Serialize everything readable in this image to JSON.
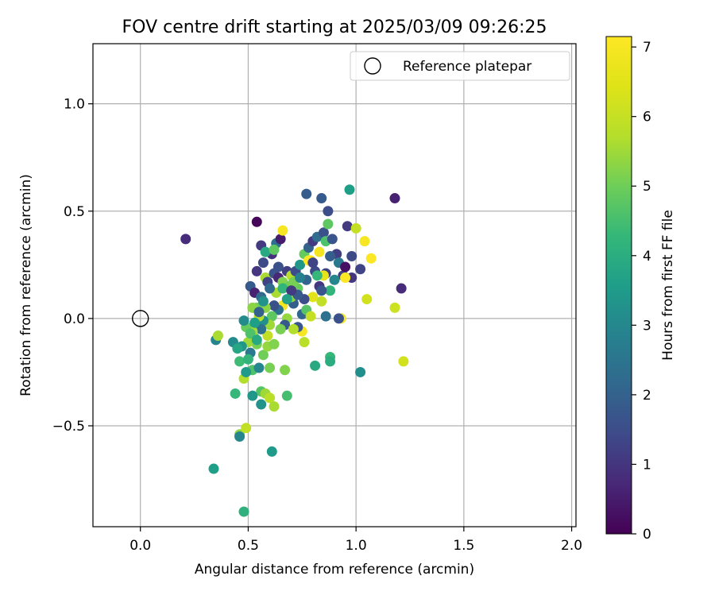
{
  "chart_data": {
    "type": "scatter",
    "title": "FOV centre drift starting at 2025/03/09 09:26:25",
    "xlabel": "Angular distance from reference (arcmin)",
    "ylabel": "Rotation from reference (arcmin)",
    "xlim": [
      -0.22,
      2.02
    ],
    "ylim": [
      -0.97,
      1.28
    ],
    "xticks": [
      0.0,
      0.5,
      1.0,
      1.5,
      2.0
    ],
    "xtick_labels": [
      "0.0",
      "0.5",
      "1.0",
      "1.5",
      "2.0"
    ],
    "yticks": [
      -0.5,
      0.0,
      0.5,
      1.0
    ],
    "ytick_labels": [
      "−0.5",
      "0.0",
      "0.5",
      "1.0"
    ],
    "grid": true,
    "legend": {
      "location": "top-right",
      "entries": [
        "Reference platepar"
      ]
    },
    "reference_point": {
      "x": 0.0,
      "y": 0.0,
      "label": "Reference platepar"
    },
    "colorbar": {
      "label": "Hours from first FF file",
      "range": [
        0,
        7.15
      ],
      "ticks": [
        0,
        1,
        2,
        3,
        4,
        5,
        6,
        7
      ],
      "tick_labels": [
        "0",
        "1",
        "2",
        "3",
        "4",
        "5",
        "6",
        "7"
      ],
      "colormap": "viridis"
    },
    "points": [
      {
        "x": 0.21,
        "y": 0.37,
        "c": 0.8
      },
      {
        "x": 0.54,
        "y": 0.45,
        "c": 0.1
      },
      {
        "x": 0.56,
        "y": 0.34,
        "c": 1.1
      },
      {
        "x": 0.61,
        "y": 0.3,
        "c": 0.9
      },
      {
        "x": 0.63,
        "y": 0.35,
        "c": 2.3
      },
      {
        "x": 0.65,
        "y": 0.37,
        "c": 0.5
      },
      {
        "x": 0.66,
        "y": 0.41,
        "c": 7.0
      },
      {
        "x": 0.57,
        "y": 0.26,
        "c": 1.4
      },
      {
        "x": 0.54,
        "y": 0.22,
        "c": 1.0
      },
      {
        "x": 0.51,
        "y": 0.15,
        "c": 1.8
      },
      {
        "x": 0.53,
        "y": 0.12,
        "c": 0.6
      },
      {
        "x": 0.56,
        "y": 0.1,
        "c": 2.2
      },
      {
        "x": 0.58,
        "y": 0.19,
        "c": 5.6
      },
      {
        "x": 0.59,
        "y": 0.17,
        "c": 1.3
      },
      {
        "x": 0.62,
        "y": 0.21,
        "c": 1.7
      },
      {
        "x": 0.64,
        "y": 0.19,
        "c": 0.7
      },
      {
        "x": 0.66,
        "y": 0.17,
        "c": 5.2
      },
      {
        "x": 0.68,
        "y": 0.22,
        "c": 1.2
      },
      {
        "x": 0.7,
        "y": 0.2,
        "c": 5.8
      },
      {
        "x": 0.72,
        "y": 0.22,
        "c": 1.5
      },
      {
        "x": 0.74,
        "y": 0.25,
        "c": 3.4
      },
      {
        "x": 0.76,
        "y": 0.3,
        "c": 4.9
      },
      {
        "x": 0.77,
        "y": 0.58,
        "c": 1.9
      },
      {
        "x": 0.78,
        "y": 0.33,
        "c": 2.0
      },
      {
        "x": 0.8,
        "y": 0.36,
        "c": 1.1
      },
      {
        "x": 0.82,
        "y": 0.38,
        "c": 2.3
      },
      {
        "x": 0.83,
        "y": 0.31,
        "c": 6.9
      },
      {
        "x": 0.84,
        "y": 0.56,
        "c": 1.8
      },
      {
        "x": 0.85,
        "y": 0.4,
        "c": 1.6
      },
      {
        "x": 0.86,
        "y": 0.36,
        "c": 4.6
      },
      {
        "x": 0.87,
        "y": 0.5,
        "c": 1.5
      },
      {
        "x": 0.87,
        "y": 0.44,
        "c": 4.8
      },
      {
        "x": 0.89,
        "y": 0.37,
        "c": 1.7
      },
      {
        "x": 0.91,
        "y": 0.3,
        "c": 1.2
      },
      {
        "x": 0.92,
        "y": 0.26,
        "c": 2.6
      },
      {
        "x": 0.94,
        "y": 0.2,
        "c": 1.3
      },
      {
        "x": 0.95,
        "y": 0.24,
        "c": 0.3
      },
      {
        "x": 0.96,
        "y": 0.43,
        "c": 1.1
      },
      {
        "x": 0.97,
        "y": 0.6,
        "c": 3.6
      },
      {
        "x": 0.98,
        "y": 0.29,
        "c": 1.4
      },
      {
        "x": 0.98,
        "y": 0.19,
        "c": 1.0
      },
      {
        "x": 1.0,
        "y": 0.42,
        "c": 6.0
      },
      {
        "x": 1.02,
        "y": 0.23,
        "c": 1.3
      },
      {
        "x": 1.04,
        "y": 0.36,
        "c": 7.0
      },
      {
        "x": 1.07,
        "y": 0.28,
        "c": 7.1
      },
      {
        "x": 1.05,
        "y": 0.09,
        "c": 6.2
      },
      {
        "x": 1.18,
        "y": 0.56,
        "c": 0.6
      },
      {
        "x": 1.21,
        "y": 0.14,
        "c": 0.8
      },
      {
        "x": 1.18,
        "y": 0.05,
        "c": 6.1
      },
      {
        "x": 1.22,
        "y": -0.2,
        "c": 6.2
      },
      {
        "x": 1.02,
        "y": -0.25,
        "c": 3.2
      },
      {
        "x": 0.95,
        "y": 0.19,
        "c": 7.1
      },
      {
        "x": 0.93,
        "y": 0.0,
        "c": 6.9
      },
      {
        "x": 0.92,
        "y": 0.0,
        "c": 1.6
      },
      {
        "x": 0.88,
        "y": 0.13,
        "c": 4.2
      },
      {
        "x": 0.88,
        "y": -0.18,
        "c": 4.3
      },
      {
        "x": 0.88,
        "y": -0.2,
        "c": 4.0
      },
      {
        "x": 0.86,
        "y": 0.21,
        "c": 1.2
      },
      {
        "x": 0.85,
        "y": 0.2,
        "c": 6.6
      },
      {
        "x": 0.84,
        "y": 0.08,
        "c": 5.9
      },
      {
        "x": 0.83,
        "y": 0.15,
        "c": 1.0
      },
      {
        "x": 0.81,
        "y": 0.22,
        "c": 1.4
      },
      {
        "x": 0.8,
        "y": 0.1,
        "c": 6.5
      },
      {
        "x": 0.79,
        "y": 0.27,
        "c": 6.8
      },
      {
        "x": 0.78,
        "y": 0.27,
        "c": 7.1
      },
      {
        "x": 0.77,
        "y": 0.18,
        "c": 2.1
      },
      {
        "x": 0.76,
        "y": 0.09,
        "c": 1.5
      },
      {
        "x": 0.75,
        "y": -0.06,
        "c": 7.0
      },
      {
        "x": 0.76,
        "y": -0.11,
        "c": 5.8
      },
      {
        "x": 0.73,
        "y": -0.04,
        "c": 1.7
      },
      {
        "x": 0.71,
        "y": 0.07,
        "c": 1.9
      },
      {
        "x": 0.7,
        "y": 0.1,
        "c": 5.3
      },
      {
        "x": 0.68,
        "y": 0.0,
        "c": 5.4
      },
      {
        "x": 0.67,
        "y": -0.03,
        "c": 1.8
      },
      {
        "x": 0.66,
        "y": 0.06,
        "c": 7.0
      },
      {
        "x": 0.65,
        "y": -0.05,
        "c": 5.1
      },
      {
        "x": 0.64,
        "y": 0.04,
        "c": 2.4
      },
      {
        "x": 0.63,
        "y": 0.12,
        "c": 5.6
      },
      {
        "x": 0.62,
        "y": 0.06,
        "c": 1.6
      },
      {
        "x": 0.61,
        "y": 0.01,
        "c": 4.8
      },
      {
        "x": 0.6,
        "y": -0.03,
        "c": 5.5
      },
      {
        "x": 0.59,
        "y": -0.08,
        "c": 5.9
      },
      {
        "x": 0.58,
        "y": 0.05,
        "c": 5.3
      },
      {
        "x": 0.57,
        "y": -0.01,
        "c": 3.2
      },
      {
        "x": 0.56,
        "y": -0.05,
        "c": 2.4
      },
      {
        "x": 0.55,
        "y": 0.01,
        "c": 5.8
      },
      {
        "x": 0.54,
        "y": -0.12,
        "c": 5.1
      },
      {
        "x": 0.53,
        "y": -0.09,
        "c": 4.6
      },
      {
        "x": 0.52,
        "y": -0.06,
        "c": 5.6
      },
      {
        "x": 0.51,
        "y": -0.16,
        "c": 2.6
      },
      {
        "x": 0.5,
        "y": -0.11,
        "c": 5.5
      },
      {
        "x": 0.49,
        "y": -0.04,
        "c": 4.9
      },
      {
        "x": 0.48,
        "y": -0.01,
        "c": 3.1
      },
      {
        "x": 0.47,
        "y": -0.13,
        "c": 3.4
      },
      {
        "x": 0.46,
        "y": -0.2,
        "c": 4.4
      },
      {
        "x": 0.48,
        "y": -0.28,
        "c": 5.7
      },
      {
        "x": 0.52,
        "y": -0.24,
        "c": 4.6
      },
      {
        "x": 0.55,
        "y": -0.23,
        "c": 3.0
      },
      {
        "x": 0.56,
        "y": -0.34,
        "c": 4.7
      },
      {
        "x": 0.58,
        "y": -0.35,
        "c": 5.5
      },
      {
        "x": 0.6,
        "y": -0.37,
        "c": 5.8
      },
      {
        "x": 0.62,
        "y": -0.41,
        "c": 5.6
      },
      {
        "x": 0.56,
        "y": -0.4,
        "c": 3.3
      },
      {
        "x": 0.52,
        "y": -0.36,
        "c": 3.4
      },
      {
        "x": 0.44,
        "y": -0.35,
        "c": 4.3
      },
      {
        "x": 0.46,
        "y": -0.54,
        "c": 5.4
      },
      {
        "x": 0.46,
        "y": -0.55,
        "c": 3.0
      },
      {
        "x": 0.49,
        "y": -0.51,
        "c": 5.9
      },
      {
        "x": 0.34,
        "y": -0.7,
        "c": 3.6
      },
      {
        "x": 0.48,
        "y": -0.9,
        "c": 4.1
      },
      {
        "x": 0.61,
        "y": -0.62,
        "c": 3.5
      },
      {
        "x": 0.6,
        "y": -0.23,
        "c": 5.1
      },
      {
        "x": 0.67,
        "y": -0.24,
        "c": 5.2
      },
      {
        "x": 0.68,
        "y": -0.36,
        "c": 4.5
      },
      {
        "x": 0.71,
        "y": -0.05,
        "c": 5.7
      },
      {
        "x": 0.73,
        "y": 0.14,
        "c": 4.9
      },
      {
        "x": 0.69,
        "y": 0.15,
        "c": 5.0
      },
      {
        "x": 0.35,
        "y": -0.1,
        "c": 2.9
      },
      {
        "x": 0.36,
        "y": -0.08,
        "c": 5.6
      },
      {
        "x": 0.43,
        "y": -0.11,
        "c": 3.1
      },
      {
        "x": 0.45,
        "y": -0.14,
        "c": 3.8
      },
      {
        "x": 0.5,
        "y": -0.19,
        "c": 4.2
      },
      {
        "x": 0.49,
        "y": -0.25,
        "c": 3.5
      },
      {
        "x": 0.51,
        "y": -0.07,
        "c": 4.6
      },
      {
        "x": 0.54,
        "y": -0.1,
        "c": 3.9
      },
      {
        "x": 0.57,
        "y": -0.17,
        "c": 5.0
      },
      {
        "x": 0.59,
        "y": -0.13,
        "c": 5.4
      },
      {
        "x": 0.62,
        "y": -0.12,
        "c": 5.2
      },
      {
        "x": 0.54,
        "y": 0.05,
        "c": 5.0
      },
      {
        "x": 0.52,
        "y": 0.05,
        "c": 5.3
      },
      {
        "x": 0.58,
        "y": 0.31,
        "c": 3.9
      },
      {
        "x": 0.62,
        "y": 0.32,
        "c": 4.8
      },
      {
        "x": 0.66,
        "y": 0.14,
        "c": 4.2
      },
      {
        "x": 0.71,
        "y": 0.17,
        "c": 5.1
      },
      {
        "x": 0.73,
        "y": 0.11,
        "c": 1.8
      },
      {
        "x": 0.75,
        "y": 0.02,
        "c": 2.1
      },
      {
        "x": 0.77,
        "y": 0.04,
        "c": 4.7
      },
      {
        "x": 0.79,
        "y": 0.01,
        "c": 6.0
      },
      {
        "x": 0.81,
        "y": -0.22,
        "c": 3.9
      },
      {
        "x": 0.82,
        "y": 0.2,
        "c": 4.3
      },
      {
        "x": 0.84,
        "y": 0.13,
        "c": 1.7
      },
      {
        "x": 0.86,
        "y": 0.01,
        "c": 2.4
      },
      {
        "x": 0.88,
        "y": 0.29,
        "c": 1.9
      },
      {
        "x": 0.9,
        "y": 0.18,
        "c": 3.0
      },
      {
        "x": 0.8,
        "y": 0.26,
        "c": 1.3
      },
      {
        "x": 0.74,
        "y": 0.19,
        "c": 2.8
      },
      {
        "x": 0.7,
        "y": 0.13,
        "c": 1.1
      },
      {
        "x": 0.68,
        "y": 0.09,
        "c": 3.7
      },
      {
        "x": 0.64,
        "y": 0.24,
        "c": 1.6
      },
      {
        "x": 0.6,
        "y": 0.14,
        "c": 2.2
      },
      {
        "x": 0.57,
        "y": 0.08,
        "c": 3.3
      },
      {
        "x": 0.55,
        "y": 0.03,
        "c": 2.0
      },
      {
        "x": 0.53,
        "y": -0.02,
        "c": 3.6
      }
    ]
  }
}
